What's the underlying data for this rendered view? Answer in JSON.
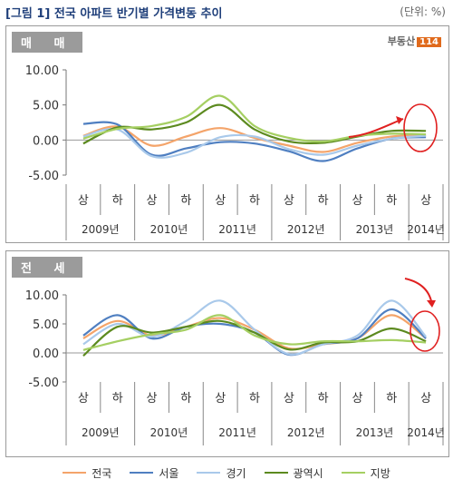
{
  "figure_title": "[그림 1] 전국 아파트 반기별 가격변동 추이",
  "unit": "(단위: %)",
  "logo": {
    "text": "부동산",
    "box": "114"
  },
  "colors": {
    "전국": "#f4a46a",
    "서울": "#4f7fc1",
    "경기": "#a9c9ea",
    "광역시": "#5c8a1f",
    "지방": "#a5cf62"
  },
  "chart_data": [
    {
      "type": "line",
      "panel_label": "매 매",
      "categories": [
        "2009 상",
        "2009 하",
        "2010 상",
        "2010 하",
        "2011 상",
        "2011 하",
        "2012 상",
        "2012 하",
        "2013 상",
        "2013 하",
        "2014 상"
      ],
      "x_half_labels": [
        "상",
        "하",
        "상",
        "하",
        "상",
        "하",
        "상",
        "하",
        "상",
        "하",
        "상"
      ],
      "x_year_labels": [
        "2009년",
        "2010년",
        "2011년",
        "2012년",
        "2013년",
        "2014년"
      ],
      "ylim": [
        -5,
        10
      ],
      "yticks": [
        "10.00",
        "5.00",
        "0.00",
        "-5.00"
      ],
      "series": [
        {
          "name": "전국",
          "values": [
            0.6,
            1.9,
            -0.8,
            0.5,
            1.7,
            0.3,
            -0.8,
            -1.7,
            -0.4,
            0.5,
            0.7
          ]
        },
        {
          "name": "서울",
          "values": [
            2.3,
            2.2,
            -2.1,
            -1.2,
            -0.3,
            -0.5,
            -1.6,
            -3.0,
            -1.2,
            0.2,
            0.4
          ]
        },
        {
          "name": "경기",
          "values": [
            0.5,
            1.5,
            -2.3,
            -1.8,
            0.4,
            0.5,
            -1.3,
            -2.1,
            -0.8,
            0.2,
            0.6
          ]
        },
        {
          "name": "광역시",
          "values": [
            -0.5,
            1.8,
            1.5,
            2.5,
            5.0,
            1.5,
            -0.2,
            -0.4,
            0.5,
            1.3,
            1.3
          ]
        },
        {
          "name": "지방",
          "values": [
            0.2,
            1.6,
            2.0,
            3.3,
            6.3,
            2.0,
            0.3,
            -0.2,
            0.6,
            0.9,
            0.8
          ]
        }
      ]
    },
    {
      "type": "line",
      "panel_label": "전 세",
      "categories": [
        "2009 상",
        "2009 하",
        "2010 상",
        "2010 하",
        "2011 상",
        "2011 하",
        "2012 상",
        "2012 하",
        "2013 상",
        "2013 하",
        "2014 상"
      ],
      "x_half_labels": [
        "상",
        "하",
        "상",
        "하",
        "상",
        "하",
        "상",
        "하",
        "상",
        "하",
        "상"
      ],
      "x_year_labels": [
        "2009년",
        "2010년",
        "2011년",
        "2012년",
        "2013년",
        "2014년"
      ],
      "ylim": [
        -5,
        10
      ],
      "yticks": [
        "10.00",
        "5.00",
        "0.00",
        "-5.00"
      ],
      "series": [
        {
          "name": "전국",
          "values": [
            2.5,
            5.5,
            3.0,
            4.5,
            6.0,
            4.0,
            0.8,
            1.5,
            2.5,
            6.5,
            2.5
          ]
        },
        {
          "name": "서울",
          "values": [
            3.0,
            6.5,
            2.5,
            4.5,
            5.0,
            3.5,
            -0.3,
            1.5,
            2.5,
            7.5,
            2.5
          ]
        },
        {
          "name": "경기",
          "values": [
            1.5,
            5.0,
            2.8,
            5.5,
            9.0,
            4.0,
            -0.2,
            1.5,
            3.0,
            9.0,
            2.8
          ]
        },
        {
          "name": "광역시",
          "values": [
            -0.5,
            4.5,
            3.5,
            4.5,
            5.5,
            3.5,
            0.6,
            1.8,
            2.0,
            4.2,
            2.0
          ]
        },
        {
          "name": "지방",
          "values": [
            0.5,
            2.0,
            3.2,
            4.0,
            6.5,
            3.0,
            1.5,
            2.0,
            2.0,
            2.2,
            1.8
          ]
        }
      ]
    }
  ],
  "legend": [
    "전국",
    "서울",
    "경기",
    "광역시",
    "지방"
  ]
}
